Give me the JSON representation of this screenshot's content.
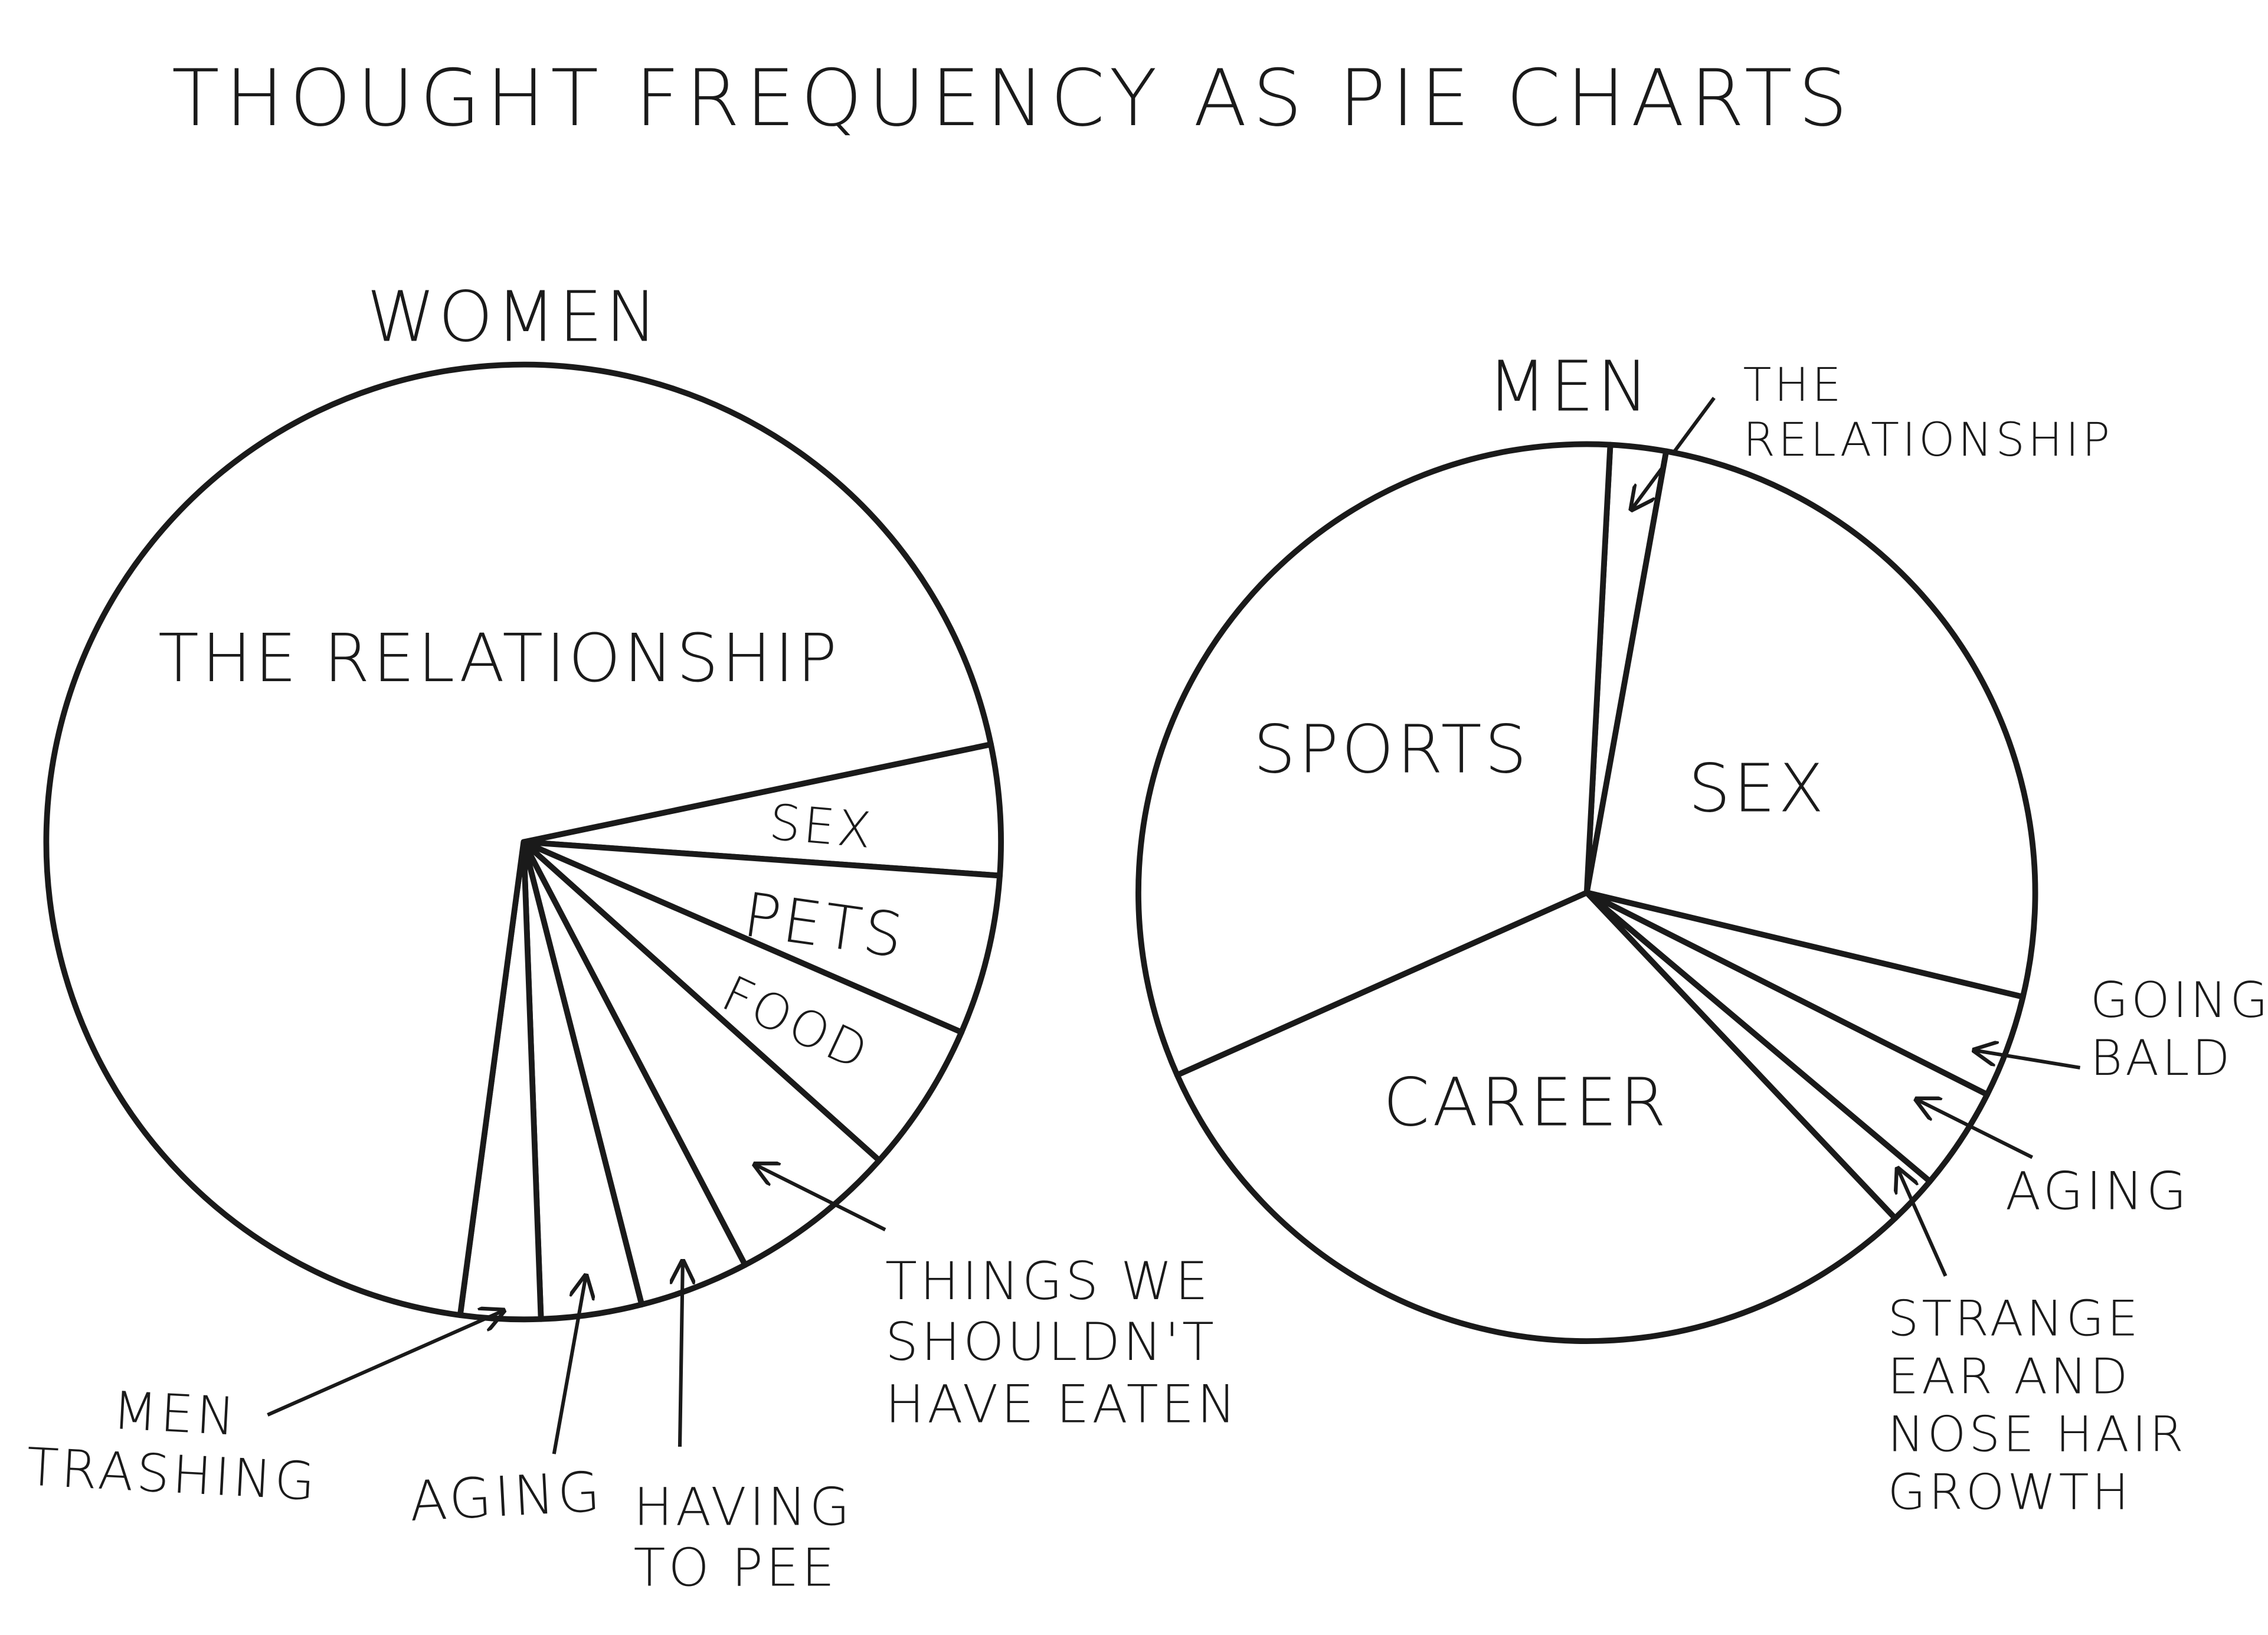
{
  "title": "THOUGHT FREQUENCY AS PIE CHARTS",
  "chart_data": [
    {
      "type": "pie",
      "title": "WOMEN",
      "color": "#ffffff",
      "categories": [
        "SEX",
        "PETS",
        "FOOD",
        "THINGS WE\nSHOULDN'T\nHAVE EATEN",
        "HAVING\nTO PEE",
        "AGING",
        "MEN\nTRASHING",
        "THE RELATIONSHIP"
      ],
      "values": [
        4.4,
        5.4,
        5.1,
        5.7,
        3.7,
        3.4,
        2.7,
        69.6
      ]
    },
    {
      "type": "pie",
      "title": "MEN",
      "color": "#ffffff",
      "categories": [
        "THE\nRELATIONSHIP",
        "SEX",
        "GOING\nBALD",
        "AGING",
        "STRANGE\nEAR AND\nNOSE HAIR\nGROWTH",
        "CAREER",
        "SPORTS"
      ],
      "values": [
        2.0,
        25.9,
        3.7,
        3.7,
        1.8,
        30.4,
        32.5
      ]
    }
  ]
}
